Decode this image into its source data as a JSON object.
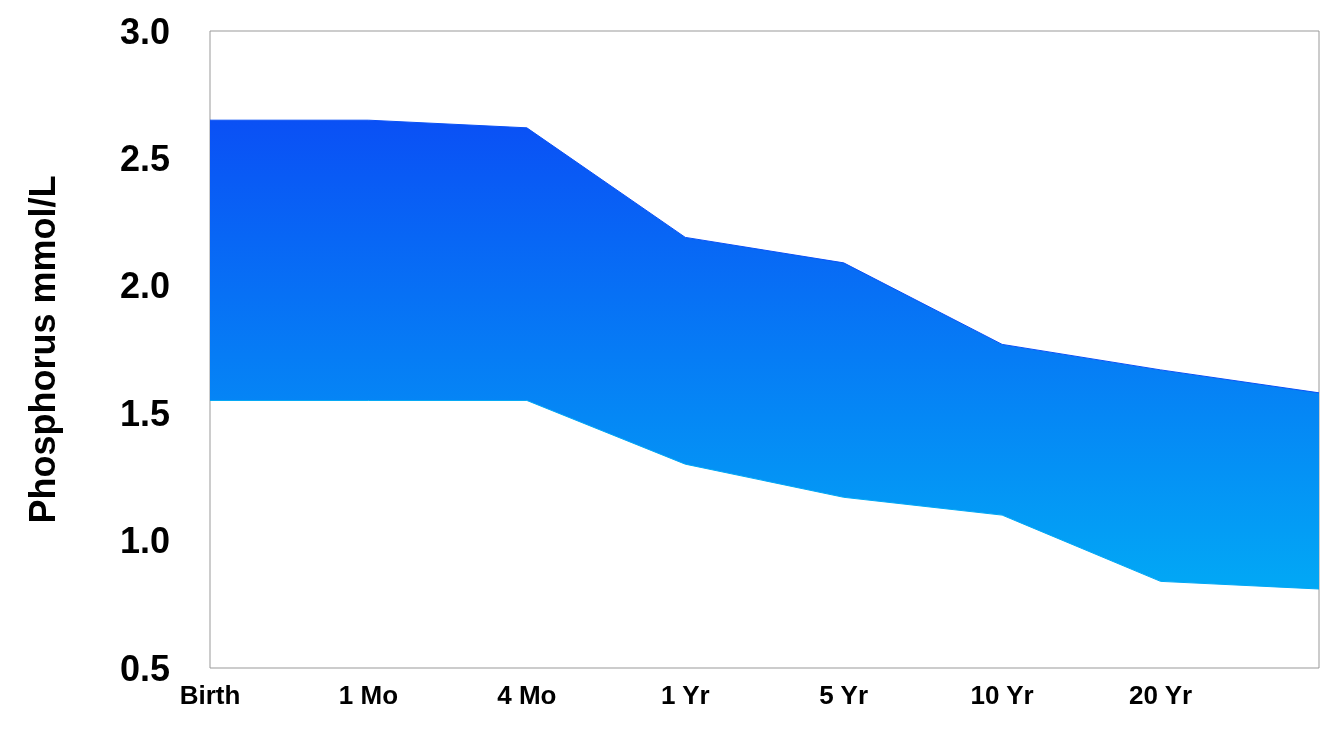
{
  "chart_data": {
    "type": "area",
    "ylabel": "Phosphorus mmol/L",
    "categories": [
      "Birth",
      "1 Mo",
      "4 Mo",
      "1 Yr",
      "5 Yr",
      "10 Yr",
      "20 Yr",
      null
    ],
    "series": [
      {
        "color": "#0a50f5",
        "values": [
          2.65,
          2.65,
          2.62,
          2.19,
          2.09,
          1.77,
          1.67,
          1.58
        ]
      },
      {
        "type": "line",
        "color": "#02a8f5",
        "values": [
          1.55,
          1.55,
          1.55,
          1.3,
          1.17,
          1.1,
          0.84,
          0.81
        ]
      }
    ],
    "ylim": [
      0.5,
      3.0
    ],
    "yticks": [
      0.5,
      {
        "value": 1,
        "label": "1.0"
      },
      1.5,
      {
        "value": 2,
        "label": "2.0"
      },
      2.5,
      {
        "value": 3,
        "label": "3.0"
      }
    ],
    "grid": false,
    "legend": false
  }
}
